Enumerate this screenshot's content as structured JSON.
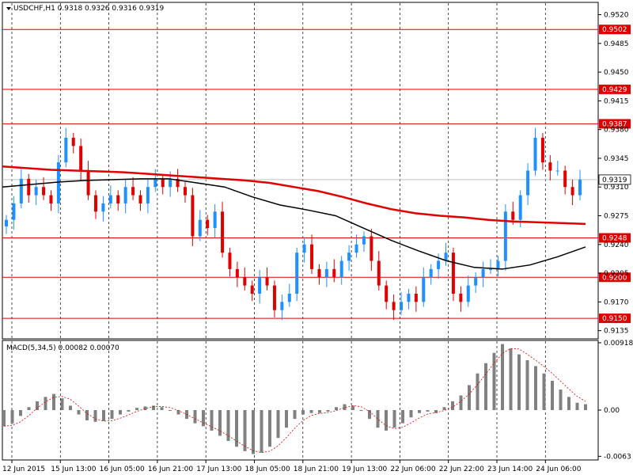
{
  "chart_data": {
    "type": "candlestick",
    "symbol_header": "USDCHF,H1  0.9318 0.9326 0.9316 0.9319",
    "price_axis": {
      "range": [
        0.9125,
        0.9535
      ],
      "ticks": [
        {
          "value": 0.952,
          "label": "0.9520"
        },
        {
          "value": 0.9485,
          "label": "0.9485"
        },
        {
          "value": 0.945,
          "label": "0.9450"
        },
        {
          "value": 0.9415,
          "label": "0.9415"
        },
        {
          "value": 0.938,
          "label": "0.9380"
        },
        {
          "value": 0.9345,
          "label": "0.9345"
        },
        {
          "value": 0.931,
          "label": "0.9310"
        },
        {
          "value": 0.9275,
          "label": "0.9275"
        },
        {
          "value": 0.924,
          "label": "0.9240"
        },
        {
          "value": 0.9205,
          "label": "0.9205"
        },
        {
          "value": 0.917,
          "label": "0.9170"
        },
        {
          "value": 0.9135,
          "label": "0.9135"
        }
      ]
    },
    "time_axis_labels": [
      "12 Jun 2015",
      "15 Jun 13:00",
      "16 Jun 05:00",
      "16 Jun 21:00",
      "17 Jun 13:00",
      "18 Jun 05:00",
      "18 Jun 21:00",
      "19 Jun 13:00",
      "22 Jun 06:00",
      "22 Jun 22:00",
      "23 Jun 14:00",
      "24 Jun 06:00"
    ],
    "levels": [
      {
        "value": 0.9502,
        "label": "0.9502"
      },
      {
        "value": 0.9429,
        "label": "0.9429"
      },
      {
        "value": 0.9387,
        "label": "0.9387"
      },
      {
        "value": 0.9248,
        "label": "0.9248"
      },
      {
        "value": 0.92,
        "label": "0.9200"
      },
      {
        "value": 0.915,
        "label": "0.9150"
      }
    ],
    "current_price": {
      "value": 0.9319,
      "label": "0.9319"
    },
    "closes": [
      0.927,
      0.929,
      0.932,
      0.93,
      0.931,
      0.93,
      0.929,
      0.934,
      0.937,
      0.936,
      0.933,
      0.93,
      0.928,
      0.929,
      0.93,
      0.929,
      0.931,
      0.93,
      0.929,
      0.931,
      0.932,
      0.931,
      0.932,
      0.931,
      0.93,
      0.925,
      0.927,
      0.926,
      0.928,
      0.923,
      0.921,
      0.92,
      0.919,
      0.918,
      0.92,
      0.919,
      0.916,
      0.917,
      0.918,
      0.923,
      0.924,
      0.921,
      0.92,
      0.921,
      0.92,
      0.922,
      0.923,
      0.924,
      0.925,
      0.922,
      0.919,
      0.917,
      0.916,
      0.917,
      0.918,
      0.917,
      0.92,
      0.921,
      0.922,
      0.923,
      0.918,
      0.917,
      0.919,
      0.92,
      0.921,
      0.921,
      0.922,
      0.928,
      0.927,
      0.93,
      0.933,
      0.937,
      0.934,
      0.933,
      0.933,
      0.931,
      0.93,
      0.9319
    ],
    "ma_fast_red": [
      0.9335,
      0.9333,
      0.9331,
      0.933,
      0.9329,
      0.9328,
      0.9326,
      0.9324,
      0.9322,
      0.932,
      0.9318,
      0.9315,
      0.931,
      0.9305,
      0.9298,
      0.929,
      0.9283,
      0.9278,
      0.9275,
      0.9273,
      0.927,
      0.9268,
      0.9267,
      0.9266,
      0.9265
    ],
    "ma_slow_black": [
      0.931,
      0.9313,
      0.9316,
      0.9318,
      0.9319,
      0.932,
      0.932,
      0.9315,
      0.931,
      0.9298,
      0.9288,
      0.9282,
      0.9275,
      0.926,
      0.9245,
      0.9232,
      0.922,
      0.9212,
      0.921,
      0.9215,
      0.9225,
      0.9237
    ],
    "macd": {
      "label": "MACD(5,34,5) 0.00082 0.00070",
      "range": [
        -0.0068,
        0.0095
      ],
      "ticks": [
        {
          "value": 0.00918,
          "label": "0.00918"
        },
        {
          "value": 0.0,
          "label": "0.00"
        },
        {
          "value": -0.0063,
          "label": "-0.0063"
        }
      ],
      "histogram": [
        -0.0022,
        -0.0018,
        -0.0008,
        0.0004,
        0.0012,
        0.0018,
        0.0022,
        0.0016,
        0.0006,
        -0.0006,
        -0.0014,
        -0.0016,
        -0.0015,
        -0.0012,
        -0.0006,
        -0.0002,
        0.0003,
        0.0005,
        0.0006,
        0.0004,
        0.0,
        -0.0006,
        -0.0012,
        -0.0018,
        -0.0022,
        -0.0028,
        -0.0035,
        -0.0042,
        -0.005,
        -0.0056,
        -0.006,
        -0.0058,
        -0.005,
        -0.0038,
        -0.0024,
        -0.0012,
        -0.0006,
        -0.0004,
        -0.0004,
        -0.0002,
        0.0004,
        0.0008,
        0.0006,
        0.0,
        -0.0012,
        -0.0024,
        -0.0028,
        -0.0024,
        -0.0018,
        -0.001,
        -0.0004,
        -0.0002,
        -0.0004,
        0.0004,
        0.0012,
        0.002,
        0.0034,
        0.005,
        0.0064,
        0.0078,
        0.009,
        0.0084,
        0.0076,
        0.0068,
        0.006,
        0.005,
        0.004,
        0.0028,
        0.0018,
        0.001,
        0.0008
      ]
    }
  }
}
